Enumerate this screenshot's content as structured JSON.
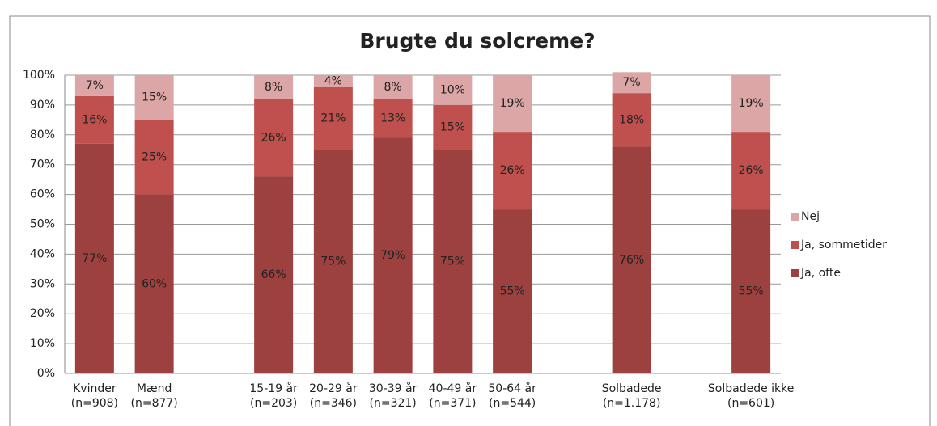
{
  "chart_data": {
    "type": "stacked_bar",
    "title": "Brugte du solcreme?",
    "categories": [
      "Kvinder\n(n=908)",
      "Mænd\n(n=877)",
      null,
      "15-19 år\n(n=203)",
      "20-29 år\n(n=346)",
      "30-39 år\n(n=321)",
      "40-49 år\n(n=371)",
      "50-64 år\n(n=544)",
      null,
      "Solbadede\n(n=1.178)",
      null,
      "Solbadede ikke\n(n=601)"
    ],
    "series": [
      {
        "name": "Ja, ofte",
        "color": "#9c413f",
        "values": [
          77,
          60,
          null,
          66,
          75,
          79,
          75,
          55,
          null,
          76,
          null,
          55
        ],
        "value_labels": [
          "77%",
          "60%",
          null,
          "66%",
          "75%",
          "79%",
          "75%",
          "55%",
          null,
          "76%",
          null,
          "55%"
        ]
      },
      {
        "name": "Ja, sommetider",
        "color": "#c0504d",
        "values": [
          16,
          25,
          null,
          26,
          21,
          13,
          15,
          26,
          null,
          18,
          null,
          26
        ],
        "value_labels": [
          "16%",
          "25%",
          null,
          "26%",
          "21%",
          "13%",
          "15%",
          "26%",
          null,
          "18%",
          null,
          "26%"
        ]
      },
      {
        "name": "Nej",
        "color": "#dba6a5",
        "values": [
          7,
          15,
          null,
          8,
          4,
          8,
          10,
          19,
          null,
          7,
          null,
          19
        ],
        "value_labels": [
          "7%",
          "15%",
          null,
          "8%",
          "4%",
          "8%",
          "10%",
          "19%",
          null,
          "7%",
          null,
          "19%"
        ]
      }
    ],
    "ylim": [
      0,
      100
    ],
    "yticks": [
      {
        "value": 0,
        "label": "0%"
      },
      {
        "value": 10,
        "label": "10%"
      },
      {
        "value": 20,
        "label": "20%"
      },
      {
        "value": 30,
        "label": "30%"
      },
      {
        "value": 40,
        "label": "40%"
      },
      {
        "value": 50,
        "label": "50%"
      },
      {
        "value": 60,
        "label": "60%"
      },
      {
        "value": 70,
        "label": "70%"
      },
      {
        "value": 80,
        "label": "80%"
      },
      {
        "value": 90,
        "label": "90%"
      },
      {
        "value": 100,
        "label": "100%"
      }
    ],
    "grid": true,
    "legend": "right"
  }
}
